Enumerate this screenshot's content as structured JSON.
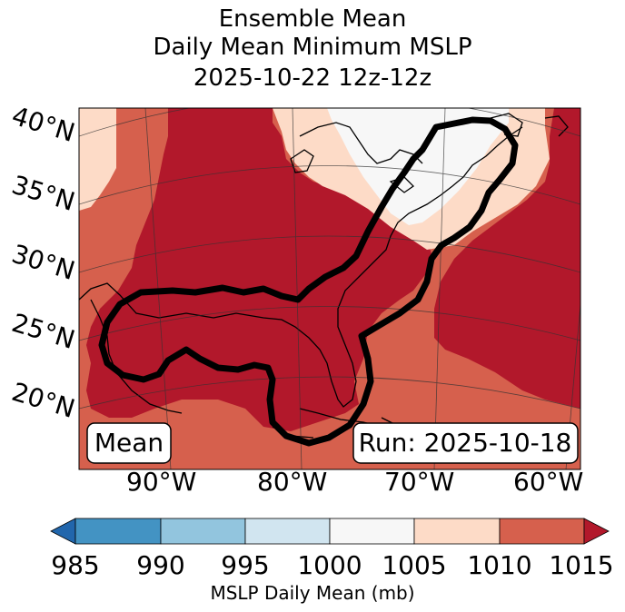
{
  "title": {
    "line1": "Ensemble Mean",
    "line2": "Daily Mean Minimum MSLP",
    "line3": "2025-10-22 12z-12z"
  },
  "latitude_labels": [
    "40°N",
    "35°N",
    "30°N",
    "25°N",
    "20°N"
  ],
  "longitude_labels": [
    "90°W",
    "80°W",
    "70°W",
    "60°W"
  ],
  "boxes": {
    "left": "Mean",
    "right": "Run: 2025-10-18"
  },
  "colorbar": {
    "ticks": [
      "985",
      "990",
      "995",
      "1000",
      "1005",
      "1010",
      "1015"
    ],
    "label": "MSLP Daily Mean (mb)",
    "colors": [
      "#2166ac",
      "#4393c3",
      "#92c5de",
      "#d1e5f0",
      "#f7f7f7",
      "#fddbc7",
      "#d6604d",
      "#b2182b"
    ]
  },
  "legend_colors": {
    "below_985": "#2166ac",
    "985_990": "#4393c3",
    "990_995": "#92c5de",
    "995_1000": "#d1e5f0",
    "1000_1005": "#f7f7f7",
    "1005_1010": "#fddbc7",
    "1010_1015": "#d6604d",
    "above_1015": "#b2182b"
  }
}
